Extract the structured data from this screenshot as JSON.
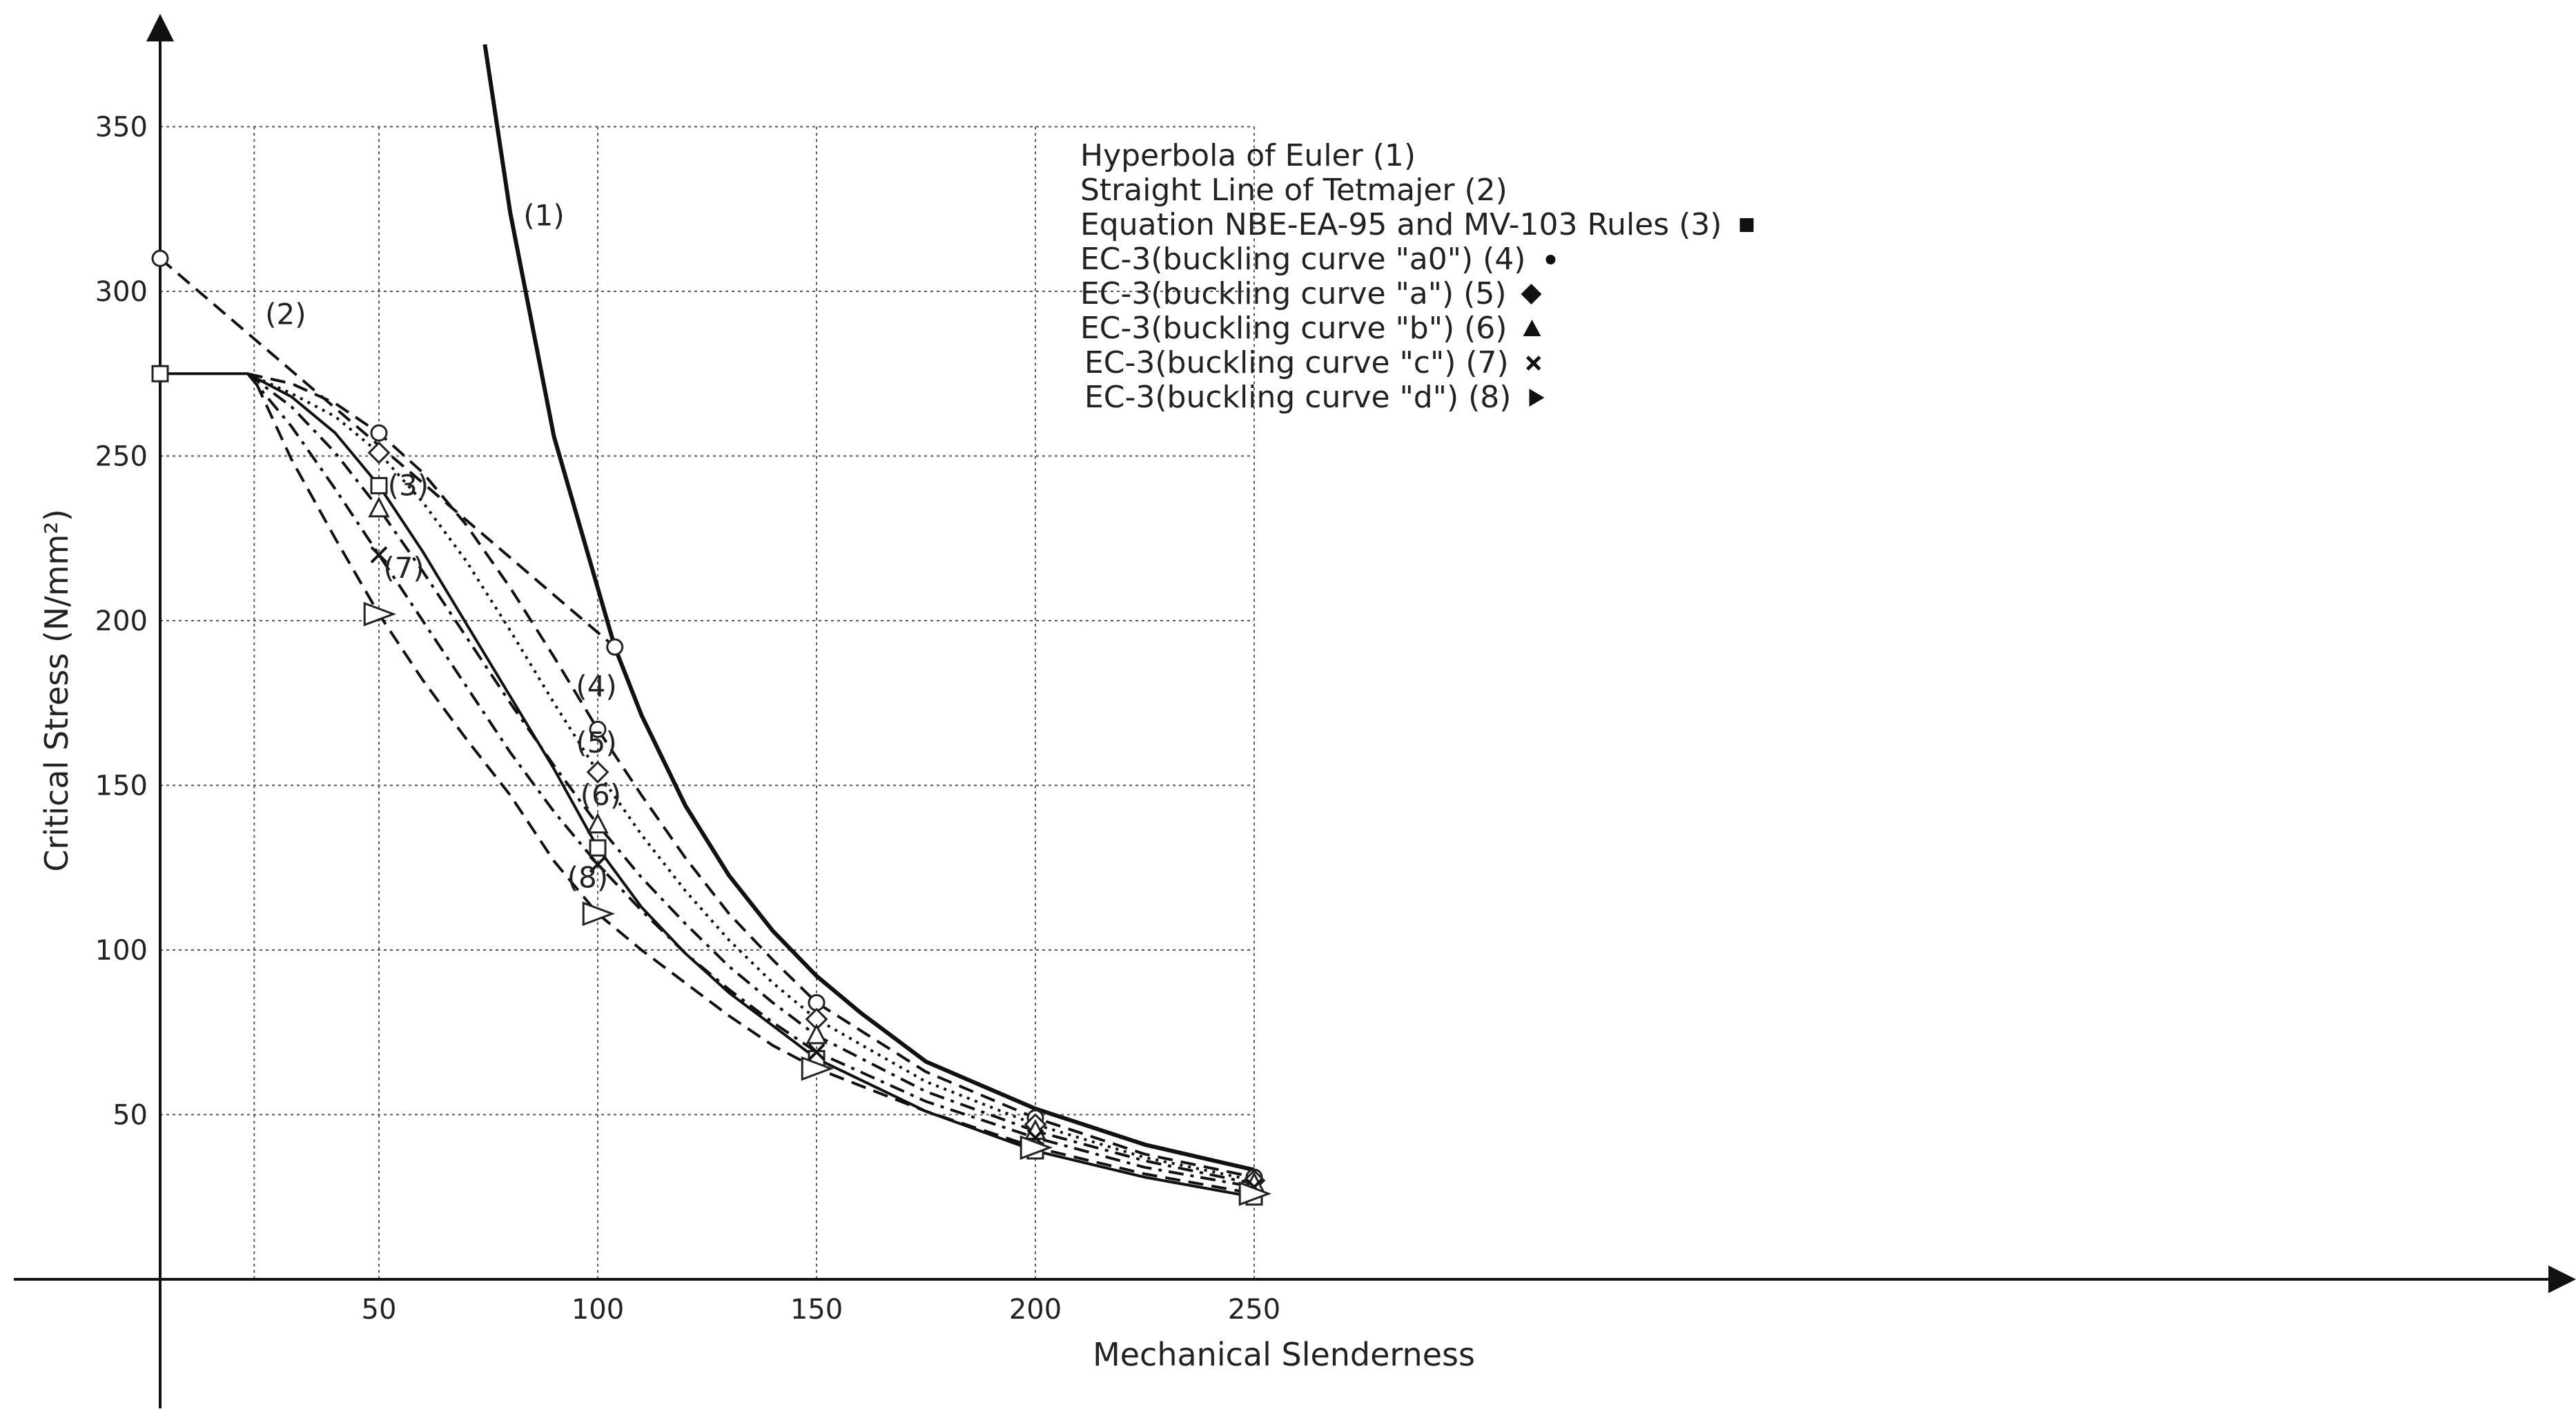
{
  "chart_data": {
    "type": "line",
    "xlabel": "Mechanical Slenderness",
    "ylabel": "Critical Stress (N/mm²)",
    "xlim": [
      0,
      270
    ],
    "ylim": [
      0,
      375
    ],
    "x_ticks": [
      50,
      100,
      150,
      200,
      250
    ],
    "y_ticks": [
      50,
      100,
      150,
      200,
      250,
      300,
      350
    ],
    "grid": true,
    "legend_position": "top-center",
    "legend": [
      {
        "label": "Hyperbola of Euler (1)",
        "marker": ""
      },
      {
        "label": "Straight Line of Tetmajer (2)",
        "marker": ""
      },
      {
        "label": "Equation NBE-EA-95 and MV-103 Rules (3)",
        "marker": "square"
      },
      {
        "label": "EC-3(buckling curve \"a0\") (4)",
        "marker": "circle"
      },
      {
        "label": "EC-3(buckling curve \"a\") (5)",
        "marker": "diamond"
      },
      {
        "label": "EC-3(buckling curve \"b\") (6)",
        "marker": "triangle-up"
      },
      {
        "label": "EC-3(buckling curve \"c\") (7)",
        "marker": "x"
      },
      {
        "label": "EC-3(buckling curve \"d\") (8)",
        "marker": "triangle-right"
      }
    ],
    "series": [
      {
        "id": "1",
        "label": "(1)",
        "style": "solid-thick",
        "label_at": [
          83,
          320
        ],
        "x": [
          74.2,
          80,
          90,
          103.9,
          110,
          120,
          130,
          140,
          150,
          160,
          175,
          200,
          225,
          250
        ],
        "y": [
          375,
          323.9,
          255.9,
          192.0,
          171.3,
          143.9,
          122.6,
          105.8,
          92.1,
          81.0,
          66.1,
          51.8,
          40.9,
          33.2
        ],
        "markers": [
          [
            103.9,
            192
          ]
        ]
      },
      {
        "id": "2",
        "label": "(2)",
        "style": "dashed",
        "label_at": [
          24,
          290
        ],
        "x": [
          0,
          103.9
        ],
        "y": [
          310,
          192
        ],
        "markers": [
          [
            0,
            310
          ]
        ]
      },
      {
        "id": "3",
        "label": "(3)",
        "style": "solid",
        "label_at": [
          52,
          238
        ],
        "x": [
          0,
          20,
          30,
          40,
          50,
          60,
          70,
          80,
          90,
          100,
          110,
          120,
          130,
          140,
          150,
          175,
          200,
          225,
          250
        ],
        "y": [
          275,
          275,
          268,
          257,
          241,
          221,
          199,
          177,
          155,
          131,
          113,
          99,
          87,
          77,
          67,
          51,
          39,
          31,
          25
        ],
        "markers": [
          [
            0,
            275
          ],
          [
            50,
            241
          ],
          [
            100,
            131
          ],
          [
            150,
            67
          ],
          [
            200,
            39
          ],
          [
            250,
            25
          ]
        ]
      },
      {
        "id": "4",
        "label": "(4)",
        "style": "dashed",
        "label_at": [
          95,
          177
        ],
        "x": [
          20,
          30,
          40,
          50,
          60,
          70,
          80,
          90,
          100,
          110,
          120,
          130,
          140,
          150,
          175,
          200,
          225,
          250
        ],
        "y": [
          275,
          272,
          266,
          257,
          245,
          229,
          210,
          189,
          167,
          147,
          128,
          111,
          97,
          84,
          63,
          49,
          38,
          31
        ],
        "markers": [
          [
            50,
            257
          ],
          [
            100,
            167
          ],
          [
            150,
            84
          ],
          [
            200,
            49
          ],
          [
            250,
            31
          ]
        ]
      },
      {
        "id": "5",
        "label": "(5)",
        "style": "dotted",
        "label_at": [
          95,
          160
        ],
        "x": [
          20,
          30,
          40,
          50,
          60,
          70,
          80,
          90,
          100,
          110,
          120,
          130,
          140,
          150,
          175,
          200,
          225,
          250
        ],
        "y": [
          275,
          269,
          262,
          251,
          236,
          218,
          197,
          175,
          154,
          135,
          118,
          103,
          90,
          79,
          60,
          47,
          37,
          30
        ],
        "markers": [
          [
            50,
            251
          ],
          [
            100,
            154
          ],
          [
            150,
            79
          ],
          [
            200,
            47
          ],
          [
            250,
            30
          ]
        ]
      },
      {
        "id": "6",
        "label": "(6)",
        "style": "dash-dot",
        "label_at": [
          96,
          144
        ],
        "x": [
          20,
          30,
          40,
          50,
          60,
          70,
          80,
          90,
          100,
          110,
          120,
          130,
          140,
          150,
          175,
          200,
          225,
          250
        ],
        "y": [
          275,
          265,
          251,
          234,
          215,
          195,
          175,
          156,
          138,
          122,
          108,
          95,
          84,
          74,
          57,
          45,
          36,
          29
        ],
        "markers": [
          [
            50,
            234
          ],
          [
            100,
            138
          ],
          [
            150,
            74
          ],
          [
            200,
            45
          ],
          [
            250,
            29
          ]
        ]
      },
      {
        "id": "7",
        "label": "(7)",
        "style": "dash-dot",
        "label_at": [
          51,
          213
        ],
        "x": [
          20,
          30,
          40,
          50,
          60,
          70,
          80,
          90,
          100,
          110,
          120,
          130,
          140,
          150,
          175,
          200,
          225,
          250
        ],
        "y": [
          275,
          259,
          240,
          220,
          200,
          180,
          160,
          142,
          126,
          112,
          99,
          88,
          78,
          69,
          54,
          43,
          34,
          28
        ],
        "markers": [
          [
            50,
            220
          ],
          [
            100,
            126
          ],
          [
            150,
            69
          ],
          [
            200,
            43
          ],
          [
            250,
            28
          ]
        ]
      },
      {
        "id": "8",
        "label": "(8)",
        "style": "dashed",
        "label_at": [
          93,
          119
        ],
        "x": [
          22,
          30,
          40,
          50,
          60,
          70,
          80,
          90,
          100,
          110,
          120,
          130,
          140,
          150,
          175,
          200,
          225,
          250
        ],
        "y": [
          272,
          249,
          225,
          202,
          182,
          164,
          147,
          127,
          111,
          100,
          90,
          80,
          71,
          64,
          51,
          40,
          32,
          26
        ],
        "markers": [
          [
            50,
            202
          ],
          [
            100,
            111
          ],
          [
            150,
            64
          ],
          [
            200,
            40
          ],
          [
            250,
            26
          ]
        ]
      }
    ]
  }
}
